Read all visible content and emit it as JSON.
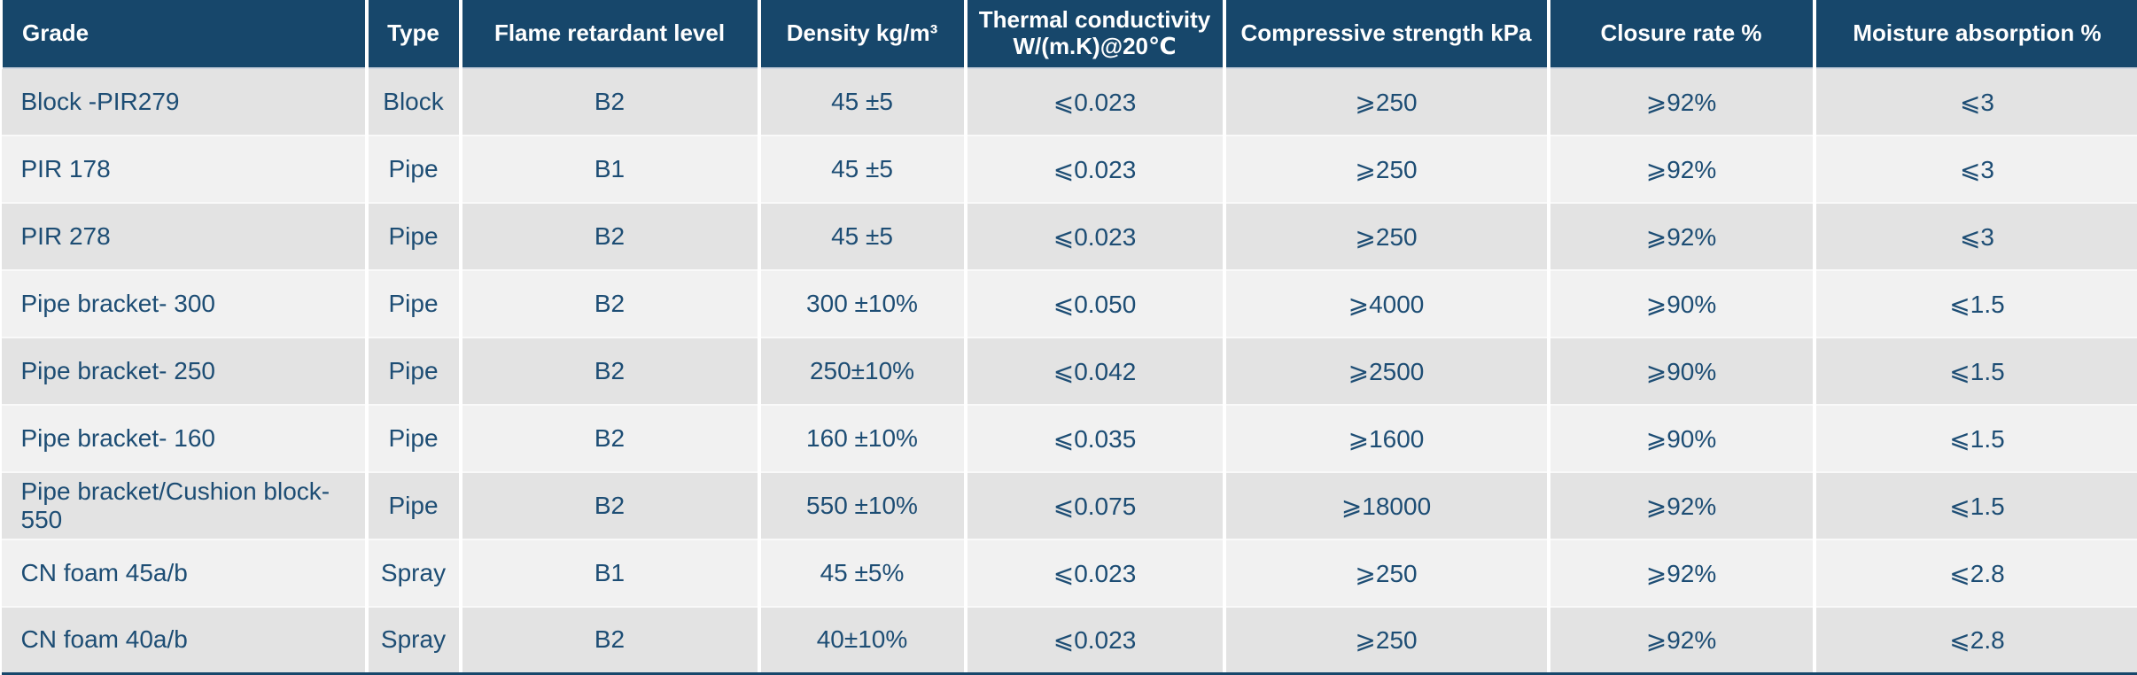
{
  "colors": {
    "header_bg": "#17476b",
    "header_text": "#ffffff",
    "body_text": "#1d4d74",
    "row_dark_bg": "#e3e3e3",
    "row_light_bg": "#f1f1f1",
    "grid_line": "#ffffff",
    "bottom_border": "#17476b"
  },
  "chart_data": {
    "type": "table",
    "columns": [
      "Grade",
      "Type",
      "Flame retardant level",
      "Density kg/m³",
      "Thermal conductivity\nW/(m.K)@20℃",
      "Compressive strength kPa",
      "Closure rate %",
      "Moisture absorption %"
    ],
    "rows": [
      [
        "Block -PIR279",
        "Block",
        "B2",
        "45 ±5",
        "⩽0.023",
        "⩾250",
        "⩾92%",
        "⩽3"
      ],
      [
        "PIR 178",
        "Pipe",
        "B1",
        "45 ±5",
        "⩽0.023",
        "⩾250",
        "⩾92%",
        "⩽3"
      ],
      [
        "PIR 278",
        "Pipe",
        "B2",
        "45 ±5",
        "⩽0.023",
        "⩾250",
        "⩾92%",
        "⩽3"
      ],
      [
        "Pipe bracket- 300",
        "Pipe",
        "B2",
        "300 ±10%",
        "⩽0.050",
        "⩾4000",
        "⩾90%",
        "⩽1.5"
      ],
      [
        "Pipe bracket- 250",
        "Pipe",
        "B2",
        "250±10%",
        "⩽0.042",
        "⩾2500",
        "⩾90%",
        "⩽1.5"
      ],
      [
        "Pipe bracket- 160",
        "Pipe",
        "B2",
        "160 ±10%",
        "⩽0.035",
        "⩾1600",
        "⩾90%",
        "⩽1.5"
      ],
      [
        "Pipe bracket/Cushion block- 550",
        "Pipe",
        "B2",
        "550 ±10%",
        "⩽0.075",
        "⩾18000",
        "⩾92%",
        "⩽1.5"
      ],
      [
        "CN foam 45a/b",
        "Spray",
        "B1",
        "45 ±5%",
        "⩽0.023",
        "⩾250",
        "⩾92%",
        "⩽2.8"
      ],
      [
        "CN foam 40a/b",
        "Spray",
        "B2",
        "40±10%",
        "⩽0.023",
        "⩾250",
        "⩾92%",
        "⩽2.8"
      ]
    ]
  }
}
